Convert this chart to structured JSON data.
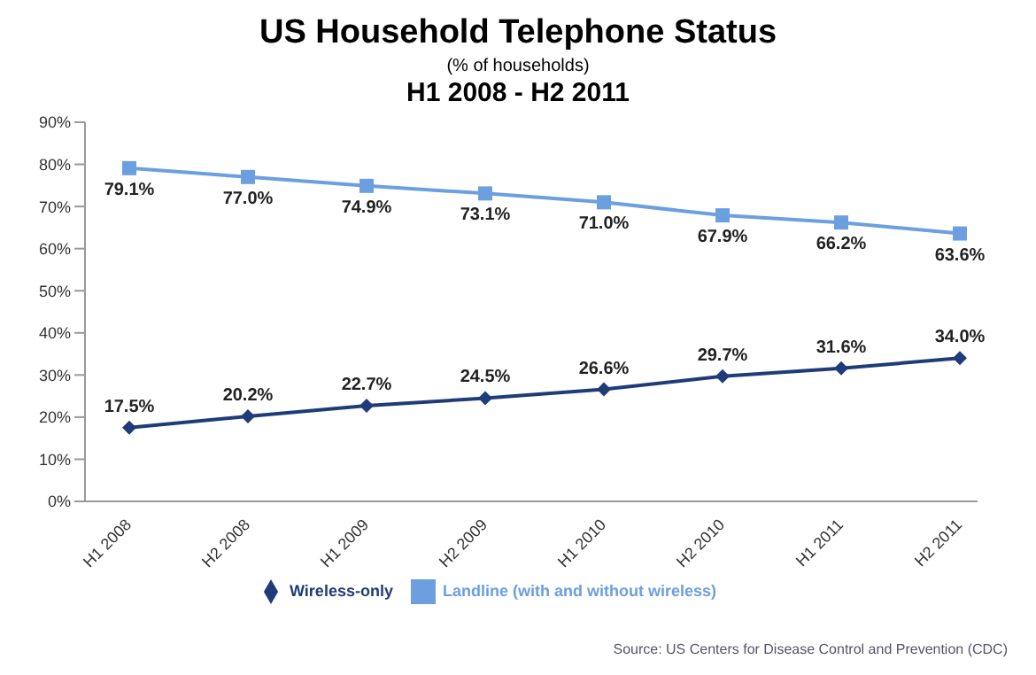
{
  "chart_data": {
    "type": "line",
    "title": "US Household Telephone Status",
    "subtitle": "(% of households)",
    "annotations": [
      "H1 2008 - H2 2011",
      "Source: US Centers for Disease Control and Prevention (CDC)"
    ],
    "categories": [
      "H1 2008",
      "H2 2008",
      "H1 2009",
      "H2 2009",
      "H1 2010",
      "H2 2010",
      "H1 2011",
      "H2 2011"
    ],
    "series": [
      {
        "name": "Wireless-only",
        "color": "#1f3c78",
        "marker": "diamond",
        "values": [
          17.5,
          20.2,
          22.7,
          24.5,
          26.6,
          29.7,
          31.6,
          34.0
        ],
        "value_labels": [
          "17.5%",
          "20.2%",
          "22.7%",
          "24.5%",
          "26.6%",
          "29.7%",
          "31.6%",
          "34.0%"
        ]
      },
      {
        "name": "Landline (with and without wireless)",
        "color": "#6c9fe0",
        "marker": "square",
        "values": [
          79.1,
          77.0,
          74.9,
          73.1,
          71.0,
          67.9,
          66.2,
          63.6
        ],
        "value_labels": [
          "79.1%",
          "77.0%",
          "74.9%",
          "73.1%",
          "71.0%",
          "67.9%",
          "66.2%",
          "63.6%"
        ]
      }
    ],
    "ylim": [
      0,
      90
    ],
    "yticks": [
      {
        "value": 0,
        "label": "0%"
      },
      {
        "value": 10,
        "label": "10%"
      },
      {
        "value": 20,
        "label": "20%"
      },
      {
        "value": 30,
        "label": "30%"
      },
      {
        "value": 40,
        "label": "40%"
      },
      {
        "value": 50,
        "label": "50%"
      },
      {
        "value": 60,
        "label": "60%"
      },
      {
        "value": 70,
        "label": "70%"
      },
      {
        "value": 80,
        "label": "80%"
      },
      {
        "value": 90,
        "label": "90%"
      }
    ],
    "legend": "bottom",
    "line_style": "solid"
  }
}
